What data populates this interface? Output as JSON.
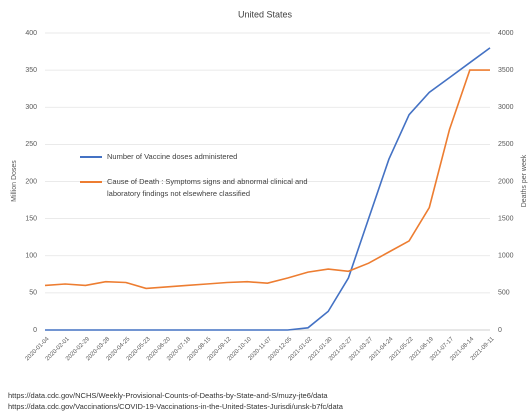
{
  "chart_data": {
    "type": "line",
    "title": "United States",
    "ylabel": "Million Doses",
    "y2label": "Deaths per week",
    "categories": [
      "2020-01-04",
      "2020-02-01",
      "2020-02-29",
      "2020-03-28",
      "2020-04-25",
      "2020-05-23",
      "2020-06-20",
      "2020-07-18",
      "2020-08-15",
      "2020-09-12",
      "2020-10-10",
      "2020-11-07",
      "2020-12-05",
      "2021-01-02",
      "2021-01-30",
      "2021-02-27",
      "2021-03-27",
      "2021-04-24",
      "2021-05-22",
      "2021-06-19",
      "2021-07-17",
      "2021-08-14",
      "2021-09-11"
    ],
    "series": [
      {
        "name": "Number of Vaccine doses administered",
        "color": "#4472c4",
        "axis": "y",
        "values": [
          0,
          0,
          0,
          0,
          0,
          0,
          0,
          0,
          0,
          0,
          0,
          0,
          0,
          3,
          25,
          70,
          150,
          230,
          290,
          320,
          340,
          360,
          380
        ]
      },
      {
        "name": "Cause of Death : Symptoms signs and abnormal clinical and laboratory findings not elsewhere classified",
        "color": "#ed7d31",
        "axis": "y2",
        "values": [
          600,
          620,
          600,
          650,
          640,
          560,
          580,
          600,
          620,
          640,
          650,
          630,
          700,
          780,
          820,
          790,
          900,
          1050,
          1200,
          1650,
          2700,
          3500,
          3500
        ]
      }
    ],
    "ylim": [
      0,
      400
    ],
    "yticks": [
      0,
      50,
      100,
      150,
      200,
      250,
      300,
      350,
      400
    ],
    "y2lim": [
      0,
      4000
    ],
    "y2ticks": [
      0,
      500,
      1000,
      1500,
      2000,
      2500,
      3000,
      3500,
      4000
    ],
    "grid": true,
    "legend": "left",
    "sources": [
      "https://data.cdc.gov/NCHS/Weekly-Provisional-Counts-of-Deaths-by-State-and-S/muzy-jte6/data",
      "https://data.cdc.gov/Vaccinations/COVID-19-Vaccinations-in-the-United-States-Jurisdi/unsk-b7fc/data"
    ]
  }
}
